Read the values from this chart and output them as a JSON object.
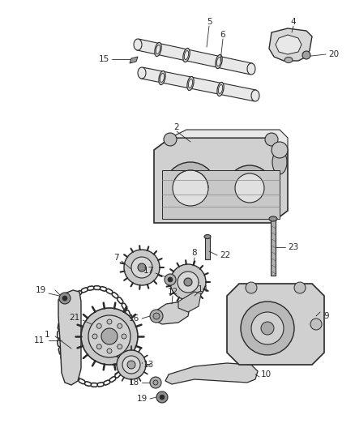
{
  "bg_color": "#ffffff",
  "line_color": "#2a2a2a",
  "gray_fill": "#c8c8c8",
  "dark_fill": "#a0a0a0",
  "light_fill": "#e8e8e8",
  "figsize": [
    4.38,
    5.33
  ],
  "dpi": 100,
  "label_fontsize": 7.5,
  "leader_lw": 0.6
}
